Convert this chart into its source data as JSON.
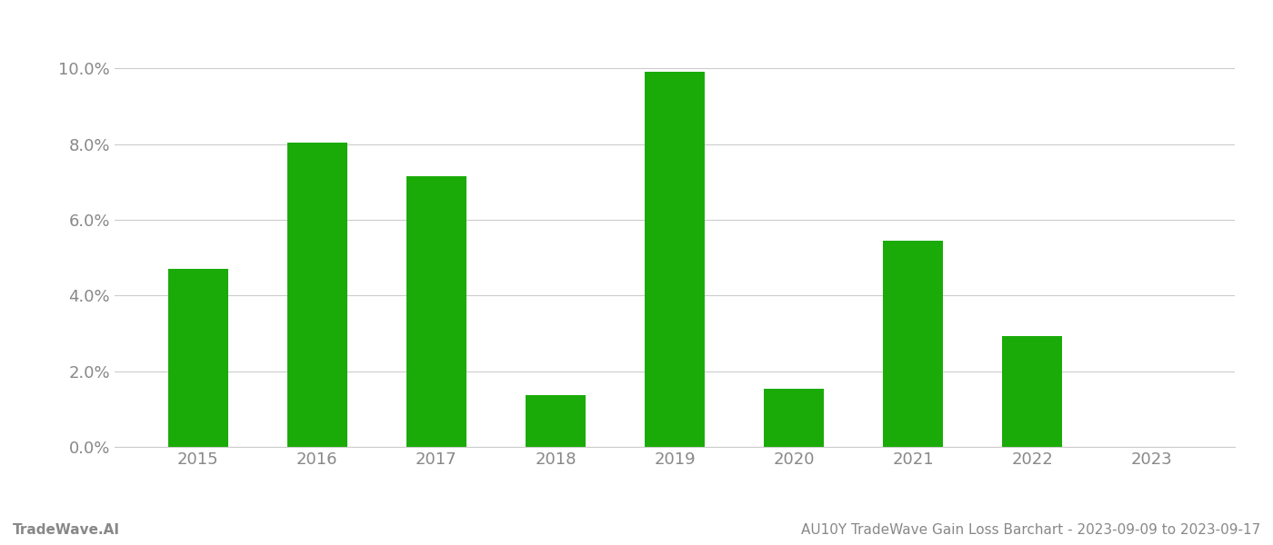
{
  "categories": [
    "2015",
    "2016",
    "2017",
    "2018",
    "2019",
    "2020",
    "2021",
    "2022",
    "2023"
  ],
  "values": [
    0.047,
    0.0805,
    0.0715,
    0.0138,
    0.099,
    0.0153,
    0.0545,
    0.0293,
    null
  ],
  "bar_color": "#1aab08",
  "background_color": "#ffffff",
  "ylim": [
    0,
    0.108
  ],
  "yticks": [
    0.0,
    0.02,
    0.04,
    0.06,
    0.08,
    0.1
  ],
  "footer_left": "TradeWave.AI",
  "footer_right": "AU10Y TradeWave Gain Loss Barchart - 2023-09-09 to 2023-09-17",
  "grid_color": "#cccccc",
  "tick_label_color": "#888888",
  "footer_color": "#888888",
  "bar_width": 0.5
}
